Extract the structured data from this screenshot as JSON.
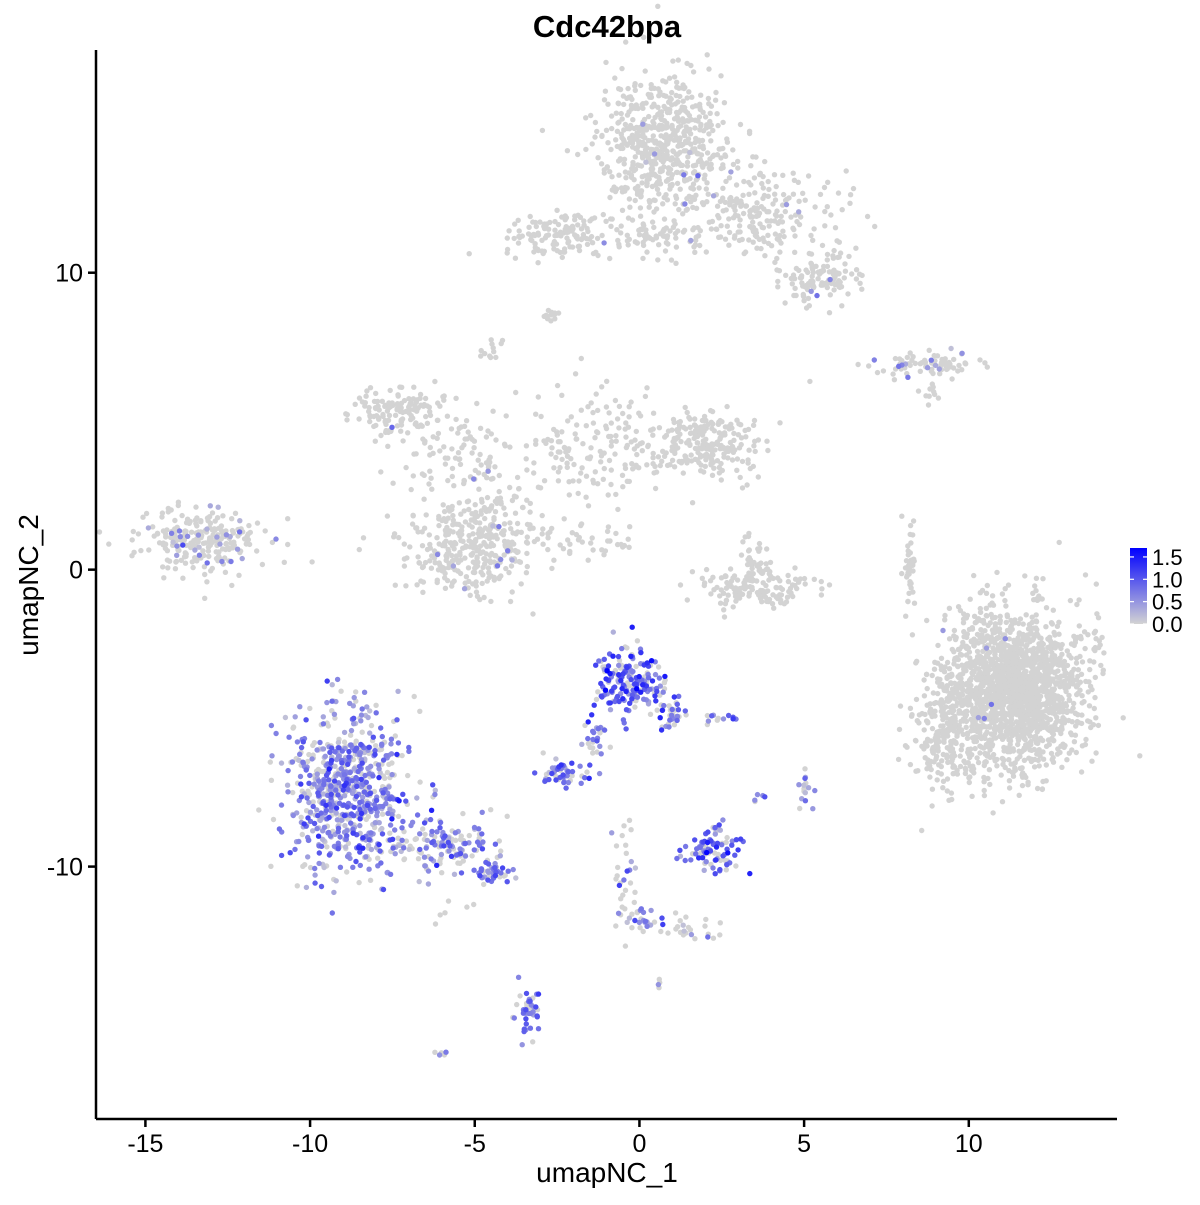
{
  "chart_data": {
    "type": "scatter",
    "title": "Cdc42bpa",
    "xlabel": "umapNC_1",
    "ylabel": "umapNC_2",
    "xlim": [
      -16.5,
      14.5
    ],
    "ylim": [
      -18.5,
      17.5
    ],
    "x_ticks": [
      -15,
      -10,
      -5,
      0,
      5,
      10
    ],
    "x_tick_labels": [
      "-15",
      "-10",
      "-5",
      "0",
      "5",
      "10"
    ],
    "y_ticks": [
      -10,
      0,
      10
    ],
    "y_tick_labels": [
      "-10",
      "0",
      "10"
    ],
    "grid": false,
    "legend": {
      "position": "right",
      "title": "",
      "ticks": [
        0.0,
        0.5,
        1.0,
        1.5
      ],
      "tick_labels": [
        "0.0",
        "0.5",
        "1.0",
        "1.5"
      ],
      "range": [
        0,
        1.7
      ]
    },
    "colors": {
      "low": "#d3d3d3",
      "high": "#0000ff"
    },
    "value_range": [
      0,
      1.7
    ],
    "clusters": [
      {
        "cx": 0.8,
        "cy": 14.3,
        "sx": 1.0,
        "sy": 1.2,
        "n": 600,
        "frac": 0.01,
        "mean": 0.5,
        "sd": 0.2
      },
      {
        "cx": 3.8,
        "cy": 12.0,
        "sx": 1.2,
        "sy": 0.8,
        "n": 200,
        "frac": 0.02,
        "mean": 0.5,
        "sd": 0.2
      },
      {
        "cx": 5.5,
        "cy": 9.8,
        "sx": 0.6,
        "sy": 0.4,
        "n": 120,
        "frac": 0.02,
        "mean": 0.5,
        "sd": 0.2
      },
      {
        "cx": -2.4,
        "cy": 11.3,
        "sx": 0.8,
        "sy": 0.4,
        "n": 120,
        "frac": 0.0,
        "mean": 0.4,
        "sd": 0.2
      },
      {
        "cx": 0.5,
        "cy": 11.2,
        "sx": 1.2,
        "sy": 0.4,
        "n": 80,
        "frac": 0.02,
        "mean": 0.5,
        "sd": 0.2
      },
      {
        "cx": -2.7,
        "cy": 8.6,
        "sx": 0.15,
        "sy": 0.15,
        "n": 12,
        "frac": 0.0,
        "mean": 0.4,
        "sd": 0.2
      },
      {
        "cx": -4.4,
        "cy": 7.4,
        "sx": 0.2,
        "sy": 0.2,
        "n": 12,
        "frac": 0.0,
        "mean": 0.4,
        "sd": 0.2
      },
      {
        "cx": 8.7,
        "cy": 6.9,
        "sx": 0.9,
        "sy": 0.2,
        "n": 80,
        "frac": 0.1,
        "mean": 0.5,
        "sd": 0.2
      },
      {
        "cx": 8.9,
        "cy": 5.9,
        "sx": 0.2,
        "sy": 0.2,
        "n": 10,
        "frac": 0.0,
        "mean": 0.4,
        "sd": 0.2
      },
      {
        "cx": -7.5,
        "cy": 5.4,
        "sx": 0.7,
        "sy": 0.4,
        "n": 120,
        "frac": 0.01,
        "mean": 0.5,
        "sd": 0.2
      },
      {
        "cx": -5.5,
        "cy": 4.2,
        "sx": 1.0,
        "sy": 0.8,
        "n": 100,
        "frac": 0.0,
        "mean": 0.4,
        "sd": 0.2
      },
      {
        "cx": -1.5,
        "cy": 4.2,
        "sx": 1.2,
        "sy": 1.0,
        "n": 160,
        "frac": 0.01,
        "mean": 0.5,
        "sd": 0.2
      },
      {
        "cx": 2.0,
        "cy": 4.2,
        "sx": 0.8,
        "sy": 0.6,
        "n": 220,
        "frac": 0.0,
        "mean": 0.4,
        "sd": 0.2
      },
      {
        "cx": -4.6,
        "cy": 1.8,
        "sx": 0.6,
        "sy": 0.8,
        "n": 80,
        "frac": 0.02,
        "mean": 0.5,
        "sd": 0.2
      },
      {
        "cx": -5.2,
        "cy": 0.6,
        "sx": 1.0,
        "sy": 0.8,
        "n": 300,
        "frac": 0.03,
        "mean": 0.5,
        "sd": 0.2
      },
      {
        "cx": -13.3,
        "cy": 1.0,
        "sx": 0.9,
        "sy": 0.55,
        "n": 250,
        "frac": 0.1,
        "mean": 0.5,
        "sd": 0.2
      },
      {
        "cx": -1.8,
        "cy": 1.0,
        "sx": 0.9,
        "sy": 0.3,
        "n": 40,
        "frac": 0.0,
        "mean": 0.4,
        "sd": 0.2
      },
      {
        "cx": 3.4,
        "cy": -0.6,
        "sx": 0.9,
        "sy": 0.35,
        "n": 150,
        "frac": 0.0,
        "mean": 0.4,
        "sd": 0.2
      },
      {
        "cx": 3.4,
        "cy": 0.5,
        "sx": 0.2,
        "sy": 0.5,
        "n": 30,
        "frac": 0.0,
        "mean": 0.4,
        "sd": 0.2
      },
      {
        "cx": 8.2,
        "cy": 0.2,
        "sx": 0.12,
        "sy": 0.8,
        "n": 40,
        "frac": 0.0,
        "mean": 0.4,
        "sd": 0.2
      },
      {
        "cx": 11.4,
        "cy": -4.0,
        "sx": 1.05,
        "sy": 1.3,
        "n": 1800,
        "frac": 0.002,
        "mean": 0.5,
        "sd": 0.2
      },
      {
        "cx": 9.2,
        "cy": -5.6,
        "sx": 0.5,
        "sy": 1.0,
        "n": 200,
        "frac": 0.0,
        "mean": 0.4,
        "sd": 0.2
      },
      {
        "cx": -0.3,
        "cy": -3.7,
        "sx": 0.5,
        "sy": 0.6,
        "n": 180,
        "frac": 0.75,
        "mean": 0.9,
        "sd": 0.35
      },
      {
        "cx": 0.9,
        "cy": -4.8,
        "sx": 0.25,
        "sy": 0.4,
        "n": 40,
        "frac": 0.6,
        "mean": 0.9,
        "sd": 0.35
      },
      {
        "cx": -1.4,
        "cy": -5.8,
        "sx": 0.2,
        "sy": 0.5,
        "n": 30,
        "frac": 0.6,
        "mean": 0.7,
        "sd": 0.3
      },
      {
        "cx": -2.4,
        "cy": -6.9,
        "sx": 0.3,
        "sy": 0.2,
        "n": 50,
        "frac": 0.8,
        "mean": 0.8,
        "sd": 0.3
      },
      {
        "cx": 2.5,
        "cy": -5.0,
        "sx": 0.3,
        "sy": 0.08,
        "n": 12,
        "frac": 0.5,
        "mean": 0.6,
        "sd": 0.3
      },
      {
        "cx": -8.9,
        "cy": -7.5,
        "sx": 0.9,
        "sy": 1.3,
        "n": 700,
        "frac": 0.65,
        "mean": 0.65,
        "sd": 0.3
      },
      {
        "cx": -6.0,
        "cy": -9.3,
        "sx": 1.0,
        "sy": 0.5,
        "n": 150,
        "frac": 0.55,
        "mean": 0.65,
        "sd": 0.3
      },
      {
        "cx": -4.3,
        "cy": -10.2,
        "sx": 0.3,
        "sy": 0.2,
        "n": 40,
        "frac": 0.7,
        "mean": 0.7,
        "sd": 0.3
      },
      {
        "cx": 2.2,
        "cy": -9.5,
        "sx": 0.4,
        "sy": 0.35,
        "n": 80,
        "frac": 0.7,
        "mean": 0.9,
        "sd": 0.3
      },
      {
        "cx": 2.4,
        "cy": -8.7,
        "sx": 0.1,
        "sy": 0.15,
        "n": 10,
        "frac": 0.5,
        "mean": 0.6,
        "sd": 0.3
      },
      {
        "cx": 5.0,
        "cy": -7.4,
        "sx": 0.15,
        "sy": 0.3,
        "n": 15,
        "frac": 0.6,
        "mean": 0.6,
        "sd": 0.3
      },
      {
        "cx": 3.6,
        "cy": -7.7,
        "sx": 0.1,
        "sy": 0.15,
        "n": 5,
        "frac": 0.3,
        "mean": 0.5,
        "sd": 0.3
      },
      {
        "cx": -0.5,
        "cy": -10.5,
        "sx": 0.3,
        "sy": 1.0,
        "n": 30,
        "frac": 0.4,
        "mean": 0.6,
        "sd": 0.3
      },
      {
        "cx": 0.0,
        "cy": -11.8,
        "sx": 0.3,
        "sy": 0.2,
        "n": 25,
        "frac": 0.5,
        "mean": 0.6,
        "sd": 0.3
      },
      {
        "cx": 1.5,
        "cy": -12.1,
        "sx": 0.6,
        "sy": 0.25,
        "n": 25,
        "frac": 0.3,
        "mean": 0.5,
        "sd": 0.3
      },
      {
        "cx": -3.4,
        "cy": -14.8,
        "sx": 0.2,
        "sy": 0.5,
        "n": 40,
        "frac": 0.8,
        "mean": 0.8,
        "sd": 0.3
      },
      {
        "cx": 0.6,
        "cy": -13.9,
        "sx": 0.08,
        "sy": 0.08,
        "n": 4,
        "frac": 0.5,
        "mean": 0.5,
        "sd": 0.2
      },
      {
        "cx": -6.0,
        "cy": -16.3,
        "sx": 0.1,
        "sy": 0.08,
        "n": 5,
        "frac": 0.6,
        "mean": 0.6,
        "sd": 0.2
      },
      {
        "cx": -5.8,
        "cy": -11.5,
        "sx": 0.3,
        "sy": 0.2,
        "n": 6,
        "frac": 0.3,
        "mean": 0.5,
        "sd": 0.2
      }
    ]
  }
}
